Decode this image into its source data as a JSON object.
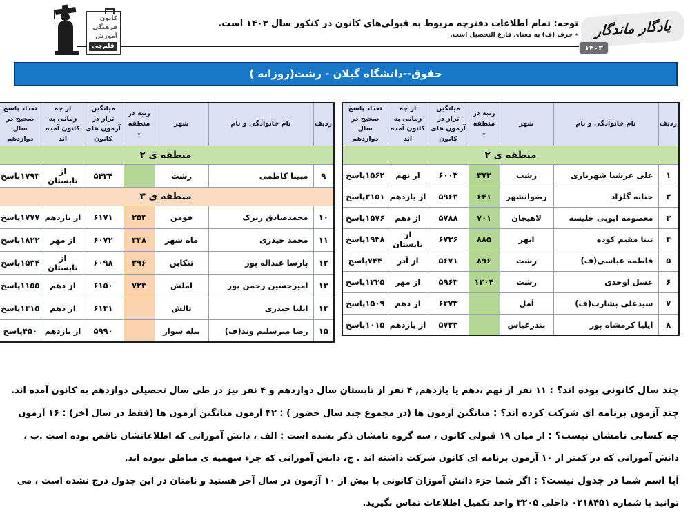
{
  "header": {
    "logo": {
      "board_lines": [
        "کانون",
        "فرهنگی",
        "آموزش"
      ],
      "board_highlight": "قلم‌چی"
    },
    "notice_main": "توجه: تمام اطلاعات دفترچه مربوط به قبولی‌های کانون در کنکور سال ۱۴۰۳ است.",
    "notice_sub": "٭ حرف (ف) به معنای فارغ التحصیل است.",
    "brand": {
      "title": "یادگار ماندگار",
      "year": "۱۴۰۳"
    }
  },
  "title_bar": {
    "text": "حقوق--دانشگاه گیلان - رشت(روزانه )"
  },
  "colors": {
    "title_bar_bg": "#1778c8",
    "header_cell_bg": "#dbe0f2",
    "region2_banner": "#c5e2ab",
    "region2_rank_cell": "#b4d893",
    "region3_banner": "#fbdcc3",
    "region3_rank_cell": "#fcd3ae"
  },
  "columns": [
    "ردیف",
    "نام خانوادگی و نام",
    "شهر",
    "رتبه در منطقه ٭",
    "میانگین تراز در آزمون های کانون",
    "از چه زمانی به کانون آمده اند",
    "تعداد پاسخ صحیح در سال دوازدهم"
  ],
  "tables": {
    "right": {
      "sections": [
        {
          "label": "منطقه ی ۲",
          "theme": "green",
          "rows": [
            [
              "۱",
              "علی عرشیا شهریاری",
              "رشت",
              "۳۷۲",
              "۶۰۰۳",
              "از نهم",
              "۱۵۶۲پاسخ"
            ],
            [
              "۲",
              "حنانه گلزاد",
              "رضوانشهر",
              "۶۴۱",
              "۵۹۶۳",
              "از یازدهم",
              "۲۱۵۱پاسخ"
            ],
            [
              "۳",
              "معصومه ایوبی جلیسه",
              "لاهیجان",
              "۷۰۱",
              "۵۷۸۸",
              "از دهم",
              "۱۵۷۶پاسخ"
            ],
            [
              "۴",
              "تینا مقیم کوده",
              "ابهر",
              "۸۸۵",
              "۶۷۳۶",
              "از تابستان",
              "۱۹۳۸پاسخ"
            ],
            [
              "۵",
              "فاطمه عباسی(ف)",
              "رشت",
              "۸۹۶",
              "۵۶۷۱",
              "از آذر",
              "۷۴۴پاسخ"
            ],
            [
              "۶",
              "عسل اوحدی",
              "رشت",
              "۱۲۰۴",
              "۵۹۶۳",
              "از مهر",
              "۱۲۲۵پاسخ"
            ],
            [
              "۷",
              "سیدعلی بشارت(ف)",
              "آمل",
              "",
              "۶۴۷۳",
              "از دهم",
              "۱۵۰۹پاسخ"
            ],
            [
              "۸",
              "ایلیا کرمشاه پور",
              "بندرعباس",
              "",
              "۵۷۲۳",
              "از یازدهم",
              "۱۰۱۵پاسخ"
            ]
          ]
        }
      ]
    },
    "left": {
      "sections": [
        {
          "label": "منطقه ی ۲",
          "theme": "green",
          "rows": [
            [
              "۹",
              "مبینا کاظمی",
              "رشت",
              "",
              "۵۴۲۴",
              "از تابستان",
              "۱۷۹۳پاسخ"
            ]
          ]
        },
        {
          "label": "منطقه ی ۳",
          "theme": "peach",
          "rows": [
            [
              "۱۰",
              "محمدصادق زیرک",
              "فومن",
              "۲۵۴",
              "۶۱۷۱",
              "از یازدهم",
              "۱۷۷۷پاسخ"
            ],
            [
              "۱۱",
              "محمد حیدری",
              "ماه شهر",
              "۳۳۸",
              "۶۰۷۲",
              "از مهر",
              "۱۸۲۲پاسخ"
            ],
            [
              "۱۲",
              "پارسا عبداله پور",
              "تنکابن",
              "۳۹۶",
              "۶۰۹۸",
              "از تابستان",
              "۱۵۳۴پاسخ"
            ],
            [
              "۱۳",
              "امیرحسین رحمن پور",
              "املش",
              "۷۲۳",
              "۶۱۵۰",
              "از دهم",
              "۱۱۵۵پاسخ"
            ],
            [
              "۱۴",
              "ایلیا حیدری",
              "تالش",
              "",
              "۶۱۴۱",
              "از دهم",
              "۱۴۱۵پاسخ"
            ],
            [
              "۱۵",
              "رضا میرسلیم وند(ف)",
              "بیله سوار",
              "",
              "۵۹۹۰",
              "از یازدهم",
              "۴۵۰پاسخ"
            ]
          ]
        }
      ]
    }
  },
  "footnotes": [
    {
      "label": "چند سال کانونی بوده اند؟ :",
      "text": "۱۱ نفر از نهم ،دهم یا یازدهم, ۴ نفر از تابستان سال دوازدهم و ۴ نفر نیز در طی سال تحصیلی دوازدهم به کانون آمده اند."
    },
    {
      "label": "چند آزمون برنامه ای شرکت کرده اند؟ :",
      "text": "میانگین آزمون ها (در مجموع چند سال حضور ) : ۴۲ آزمون    میانگین آزمون ها (فقط در سال آخر) : ۱۶ آزمون"
    },
    {
      "label": "چه کسانی نامشان نیست؟ :",
      "text": "از میان ۱۹ قبولی کانون ، سه گروه نامشان ذکر نشده است : الف ، دانش آموزانی که اطلاعاتشان ناقص بوده است .ب ، دانش آموزانی که در کمتر از ۱۰ آزمون برنامه ای کانون شرکت داشته اند . ج، دانش آموزانی که جزء سهمیه ی مناطق نبوده اند."
    },
    {
      "label": "آیا اسم شما در جدول نیست؟ :",
      "text": "اگر شما جزء دانش آموزان کانونی با بیش از ۱۰ آزمون در سال آخر هستید و نامتان در این جدول درج نشده است ، می توانید با شماره ۰۲۱۸۴۵۱ داخلی ۳۲۰۵ واحد تکمیل اطلاعات تماس بگیرید."
    }
  ]
}
